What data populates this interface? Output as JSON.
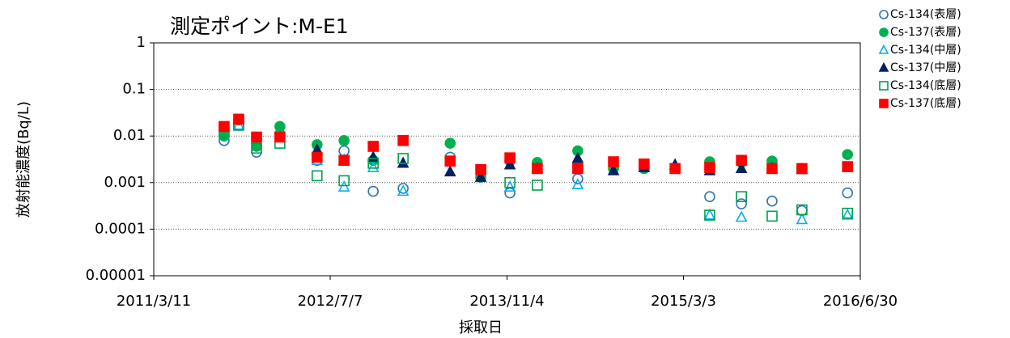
{
  "chart_data": {
    "type": "scatter",
    "title": "測定ポイント:M-E1",
    "x_label": "採取日",
    "y_label": "放射能濃度(Bq/L)",
    "log_y": true,
    "grid": true,
    "legend": "right",
    "x": [
      "2011/9/20",
      "2011/10/30",
      "2011/12/18",
      "2012/2/20",
      "2012/6/1",
      "2012/8/14",
      "2012/11/2",
      "2013/1/23",
      "2013/6/1",
      "2013/8/24",
      "2013/11/12",
      "2014/1/26",
      "2014/5/17",
      "2014/8/23",
      "2014/11/15",
      "2015/2/8",
      "2015/5/14",
      "2015/8/9",
      "2015/11/1",
      "2016/1/22",
      "2016/5/26"
    ],
    "xlim": [
      "2011/3/11",
      "2016/6/30"
    ],
    "xticks": [
      "2011/3/11",
      "2012/7/7",
      "2013/11/4",
      "2015/3/3",
      "2016/6/30"
    ],
    "ylim": [
      1e-05,
      1
    ],
    "yticks": [
      1,
      0.1,
      0.01,
      0.001,
      0.0001,
      1e-05
    ],
    "series": [
      {
        "name": "Cs-134(表層)",
        "color": "#2e75b6",
        "marker": "circle",
        "filled": false,
        "values": [
          0.008,
          0.017,
          0.0045,
          0.011,
          0.003,
          0.0048,
          0.00065,
          0.00075,
          0.0035,
          null,
          0.0006,
          null,
          0.0012,
          null,
          null,
          null,
          0.0005,
          0.00035,
          0.0004,
          0.00025,
          0.0006
        ]
      },
      {
        "name": "Cs-137(表層)",
        "color": "#00b050",
        "marker": "circle",
        "filled": true,
        "values": [
          0.01,
          0.022,
          0.006,
          0.016,
          0.0065,
          0.008,
          0.003,
          null,
          0.007,
          0.0013,
          0.0029,
          0.0027,
          0.0048,
          0.002,
          0.002,
          0.002,
          0.0028,
          0.0027,
          0.0029,
          0.002,
          0.004
        ]
      },
      {
        "name": "Cs-134(中層)",
        "color": "#00b0f0",
        "marker": "triangle",
        "filled": false,
        "values": [
          null,
          0.017,
          null,
          null,
          0.003,
          0.0008,
          0.0021,
          0.00065,
          null,
          null,
          0.0008,
          null,
          0.0009,
          null,
          null,
          null,
          0.0002,
          0.00018,
          null,
          0.00016,
          0.0002
        ]
      },
      {
        "name": "Cs-137(中層)",
        "color": "#002060",
        "marker": "triangle",
        "filled": true,
        "values": [
          null,
          null,
          null,
          null,
          0.005,
          0.003,
          0.0035,
          0.0026,
          0.0017,
          0.0013,
          0.0024,
          0.002,
          0.0033,
          0.0018,
          0.0021,
          0.0024,
          0.0018,
          0.002,
          0.002,
          0.0019,
          null
        ]
      },
      {
        "name": "Cs-134(底層)",
        "color": "#00a050",
        "marker": "square",
        "filled": false,
        "values": [
          0.012,
          0.017,
          0.0055,
          0.007,
          0.0014,
          0.0011,
          0.0026,
          0.0033,
          null,
          null,
          0.001,
          0.00088,
          null,
          null,
          null,
          null,
          0.0002,
          0.0005,
          0.00019,
          0.00026,
          0.00022
        ]
      },
      {
        "name": "Cs-137(底層)",
        "color": "#ff0000",
        "marker": "square",
        "filled": true,
        "values": [
          0.016,
          0.023,
          0.0095,
          0.0095,
          0.0035,
          0.003,
          0.006,
          0.008,
          0.0029,
          0.0019,
          0.0034,
          0.002,
          0.002,
          0.0028,
          0.0025,
          0.002,
          0.0021,
          0.003,
          0.002,
          0.002,
          0.0022
        ]
      }
    ]
  }
}
